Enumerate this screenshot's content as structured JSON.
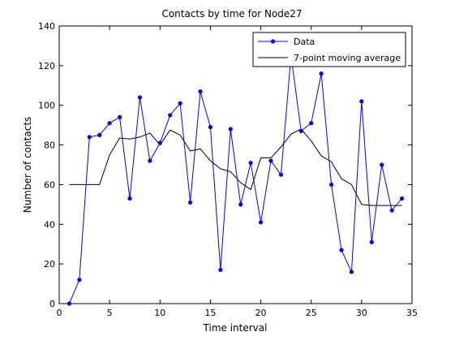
{
  "chart_data": {
    "type": "line",
    "title": "Contacts by time for Node27",
    "xlabel": "Time interval",
    "ylabel": "Number of contacts",
    "xlim": [
      0,
      35
    ],
    "ylim": [
      0,
      140
    ],
    "xticks": [
      "0",
      "5",
      "10",
      "15",
      "20",
      "25",
      "30",
      "35"
    ],
    "yticks": [
      "0",
      "20",
      "40",
      "60",
      "80",
      "100",
      "120",
      "140"
    ],
    "grid": false,
    "legend_position": "top-right",
    "series": [
      {
        "name": "Data",
        "color": "#0000ff",
        "marker": "dot",
        "x": [
          1,
          2,
          3,
          4,
          5,
          6,
          7,
          8,
          9,
          10,
          11,
          12,
          13,
          14,
          15,
          16,
          17,
          18,
          19,
          20,
          21,
          22,
          23,
          24,
          25,
          26,
          27,
          28,
          29,
          30,
          31,
          32,
          33,
          34
        ],
        "values": [
          0,
          12,
          84,
          85,
          91,
          94,
          53,
          104,
          72,
          81,
          95,
          101,
          51,
          107,
          89,
          17,
          88,
          50,
          71,
          41,
          72,
          65,
          125,
          87,
          91,
          116,
          60,
          27,
          16,
          102,
          31,
          70,
          47,
          53
        ]
      },
      {
        "name": "7-point moving average",
        "color": "#000000",
        "marker": "none",
        "x": [
          1,
          2,
          3,
          4,
          5,
          6,
          7,
          8,
          9,
          10,
          11,
          12,
          13,
          14,
          15,
          16,
          17,
          18,
          19,
          20,
          21,
          22,
          23,
          24,
          25,
          26,
          27,
          28,
          29,
          30,
          31,
          32,
          33,
          34
        ],
        "values": [
          60,
          60,
          60,
          60,
          75,
          83.5,
          83,
          84,
          86,
          80,
          87.5,
          85,
          77,
          78,
          72,
          68,
          66.5,
          61,
          57.5,
          73.5,
          73.5,
          79,
          85.5,
          88,
          82,
          74.5,
          71.5,
          63,
          60,
          50,
          49.5,
          49.5,
          49.5,
          49.5
        ]
      }
    ]
  }
}
